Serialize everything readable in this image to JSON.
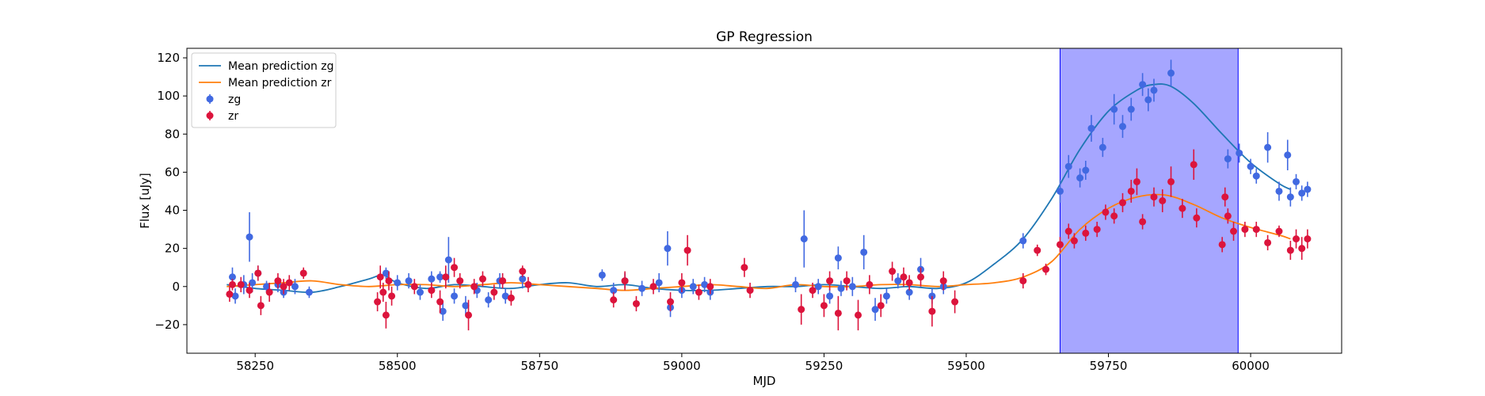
{
  "chart_data": {
    "type": "scatter",
    "title": "GP Regression",
    "xlabel": "MJD",
    "ylabel": "Flux [uJy]",
    "xlim": [
      58130,
      60160
    ],
    "ylim": [
      -35,
      125
    ],
    "xticks": [
      58250,
      58500,
      58750,
      59000,
      59250,
      59500,
      59750,
      60000
    ],
    "yticks": [
      -20,
      0,
      20,
      40,
      60,
      80,
      100,
      120
    ],
    "highlight_region": {
      "x_start": 59665,
      "x_end": 59978,
      "color": "#a6a6ff"
    },
    "legend": {
      "location": "upper left",
      "entries": [
        "Mean prediction zg",
        "Mean prediction zr",
        "zg",
        "zr"
      ]
    },
    "lines": [
      {
        "name": "Mean prediction zg",
        "color": "#1f77b4",
        "x": [
          58200,
          58250,
          58300,
          58350,
          58400,
          58450,
          58475,
          58500,
          58550,
          58600,
          58650,
          58700,
          58750,
          58800,
          58850,
          58900,
          58950,
          59000,
          59050,
          59100,
          59150,
          59200,
          59250,
          59300,
          59350,
          59400,
          59450,
          59500,
          59550,
          59600,
          59650,
          59700,
          59750,
          59800,
          59830,
          59860,
          59900,
          59950,
          60000,
          60050,
          60070
        ],
        "y": [
          1,
          -1,
          -2,
          -3,
          0,
          4,
          6,
          2,
          -1,
          1,
          0,
          -1,
          1,
          2,
          0,
          1,
          -1,
          -2,
          -2,
          -1,
          0,
          0,
          1,
          0,
          -1,
          0,
          -1,
          2,
          12,
          25,
          46,
          72,
          92,
          103,
          106,
          105,
          96,
          80,
          65,
          54,
          51
        ]
      },
      {
        "name": "Mean prediction zr",
        "color": "#ff7f0e",
        "x": [
          58200,
          58250,
          58300,
          58350,
          58400,
          58450,
          58500,
          58550,
          58600,
          58650,
          58700,
          58750,
          58800,
          58850,
          58900,
          58950,
          59000,
          59050,
          59100,
          59150,
          59200,
          59250,
          59300,
          59350,
          59400,
          59450,
          59500,
          59550,
          59600,
          59650,
          59700,
          59750,
          59800,
          59850,
          59900,
          59950,
          60000,
          60050,
          60070
        ],
        "y": [
          0,
          1,
          2,
          3,
          1,
          0,
          1,
          1,
          0,
          1,
          2,
          1,
          0,
          -1,
          -2,
          -1,
          0,
          1,
          0,
          -1,
          1,
          0,
          0,
          1,
          1,
          0,
          1,
          2,
          5,
          13,
          30,
          41,
          47,
          48,
          43,
          36,
          31,
          27,
          25
        ]
      }
    ],
    "series": [
      {
        "name": "zg",
        "color": "#4169e1",
        "points": [
          [
            58210,
            5,
            5
          ],
          [
            58215,
            -5,
            4
          ],
          [
            58230,
            1,
            5
          ],
          [
            58240,
            26,
            13
          ],
          [
            58245,
            2,
            5
          ],
          [
            58255,
            7,
            4
          ],
          [
            58270,
            0,
            3
          ],
          [
            58290,
            1,
            4
          ],
          [
            58300,
            -3,
            3
          ],
          [
            58320,
            0,
            4
          ],
          [
            58345,
            -3,
            3
          ],
          [
            58480,
            7,
            3
          ],
          [
            58500,
            2,
            4
          ],
          [
            58520,
            3,
            4
          ],
          [
            58540,
            -3,
            4
          ],
          [
            58560,
            4,
            4
          ],
          [
            58575,
            5,
            3
          ],
          [
            58580,
            -13,
            5
          ],
          [
            58590,
            14,
            12
          ],
          [
            58600,
            -5,
            4
          ],
          [
            58620,
            -10,
            5
          ],
          [
            58640,
            -2,
            4
          ],
          [
            58660,
            -7,
            4
          ],
          [
            58680,
            3,
            4
          ],
          [
            58690,
            -5,
            4
          ],
          [
            58720,
            4,
            5
          ],
          [
            58860,
            6,
            3
          ],
          [
            58880,
            -2,
            4
          ],
          [
            58900,
            3,
            4
          ],
          [
            58930,
            -1,
            4
          ],
          [
            58960,
            2,
            5
          ],
          [
            58975,
            20,
            9
          ],
          [
            58980,
            -11,
            5
          ],
          [
            59000,
            -2,
            4
          ],
          [
            59020,
            0,
            4
          ],
          [
            59040,
            1,
            4
          ],
          [
            59050,
            -3,
            4
          ],
          [
            59200,
            1,
            4
          ],
          [
            59215,
            25,
            15
          ],
          [
            59240,
            0,
            4
          ],
          [
            59260,
            -5,
            4
          ],
          [
            59275,
            15,
            6
          ],
          [
            59280,
            -1,
            4
          ],
          [
            59300,
            0,
            5
          ],
          [
            59320,
            18,
            9
          ],
          [
            59340,
            -12,
            6
          ],
          [
            59360,
            -5,
            4
          ],
          [
            59380,
            3,
            4
          ],
          [
            59400,
            -3,
            4
          ],
          [
            59420,
            9,
            6
          ],
          [
            59440,
            -5,
            4
          ],
          [
            59460,
            0,
            4
          ],
          [
            59600,
            24,
            4
          ],
          [
            59665,
            50,
            6
          ],
          [
            59680,
            63,
            6
          ],
          [
            59700,
            57,
            5
          ],
          [
            59710,
            61,
            5
          ],
          [
            59720,
            83,
            7
          ],
          [
            59740,
            73,
            5
          ],
          [
            59760,
            93,
            8
          ],
          [
            59775,
            84,
            6
          ],
          [
            59790,
            93,
            6
          ],
          [
            59810,
            106,
            6
          ],
          [
            59820,
            98,
            6
          ],
          [
            59830,
            103,
            6
          ],
          [
            59860,
            112,
            7
          ],
          [
            59960,
            67,
            5
          ],
          [
            59980,
            70,
            5
          ],
          [
            60000,
            63,
            4
          ],
          [
            60010,
            58,
            4
          ],
          [
            60030,
            73,
            8
          ],
          [
            60050,
            50,
            5
          ],
          [
            60065,
            69,
            8
          ],
          [
            60070,
            47,
            5
          ],
          [
            60080,
            55,
            4
          ],
          [
            60090,
            49,
            4
          ],
          [
            60100,
            51,
            4
          ]
        ]
      },
      {
        "name": "zr",
        "color": "#dc143c",
        "points": [
          [
            58205,
            -4,
            4
          ],
          [
            58210,
            1,
            3
          ],
          [
            58225,
            1,
            4
          ],
          [
            58240,
            -2,
            4
          ],
          [
            58255,
            7,
            4
          ],
          [
            58260,
            -10,
            5
          ],
          [
            58275,
            -3,
            5
          ],
          [
            58290,
            3,
            4
          ],
          [
            58300,
            0,
            4
          ],
          [
            58310,
            2,
            4
          ],
          [
            58335,
            7,
            3
          ],
          [
            58465,
            -8,
            5
          ],
          [
            58470,
            5,
            6
          ],
          [
            58475,
            -3,
            5
          ],
          [
            58480,
            -15,
            7
          ],
          [
            58485,
            3,
            5
          ],
          [
            58490,
            -5,
            5
          ],
          [
            58530,
            0,
            4
          ],
          [
            58560,
            -2,
            4
          ],
          [
            58575,
            -8,
            6
          ],
          [
            58585,
            5,
            6
          ],
          [
            58600,
            10,
            5
          ],
          [
            58610,
            3,
            4
          ],
          [
            58625,
            -15,
            8
          ],
          [
            58635,
            0,
            4
          ],
          [
            58650,
            4,
            4
          ],
          [
            58670,
            -3,
            4
          ],
          [
            58685,
            3,
            4
          ],
          [
            58700,
            -6,
            4
          ],
          [
            58720,
            8,
            3
          ],
          [
            58730,
            1,
            4
          ],
          [
            58880,
            -7,
            4
          ],
          [
            58900,
            3,
            5
          ],
          [
            58920,
            -9,
            4
          ],
          [
            58950,
            0,
            4
          ],
          [
            58980,
            -8,
            5
          ],
          [
            59000,
            2,
            5
          ],
          [
            59010,
            19,
            8
          ],
          [
            59030,
            -3,
            4
          ],
          [
            59050,
            0,
            4
          ],
          [
            59110,
            10,
            5
          ],
          [
            59120,
            -2,
            4
          ],
          [
            59210,
            -12,
            8
          ],
          [
            59230,
            -2,
            4
          ],
          [
            59250,
            -10,
            6
          ],
          [
            59260,
            3,
            5
          ],
          [
            59275,
            -14,
            9
          ],
          [
            59290,
            3,
            5
          ],
          [
            59310,
            -15,
            8
          ],
          [
            59330,
            1,
            5
          ],
          [
            59350,
            -10,
            6
          ],
          [
            59370,
            8,
            5
          ],
          [
            59390,
            5,
            5
          ],
          [
            59400,
            2,
            4
          ],
          [
            59420,
            5,
            5
          ],
          [
            59440,
            -13,
            8
          ],
          [
            59460,
            3,
            5
          ],
          [
            59480,
            -8,
            6
          ],
          [
            59600,
            3,
            4
          ],
          [
            59625,
            19,
            3
          ],
          [
            59640,
            9,
            3
          ],
          [
            59665,
            22,
            4
          ],
          [
            59680,
            29,
            4
          ],
          [
            59690,
            24,
            4
          ],
          [
            59710,
            28,
            4
          ],
          [
            59730,
            30,
            4
          ],
          [
            59745,
            39,
            4
          ],
          [
            59760,
            37,
            4
          ],
          [
            59775,
            44,
            5
          ],
          [
            59790,
            50,
            6
          ],
          [
            59800,
            55,
            7
          ],
          [
            59810,
            34,
            4
          ],
          [
            59830,
            47,
            5
          ],
          [
            59845,
            45,
            6
          ],
          [
            59860,
            55,
            8
          ],
          [
            59880,
            41,
            5
          ],
          [
            59900,
            64,
            8
          ],
          [
            59905,
            36,
            5
          ],
          [
            59950,
            22,
            4
          ],
          [
            59955,
            47,
            5
          ],
          [
            59960,
            37,
            4
          ],
          [
            59970,
            29,
            5
          ],
          [
            59990,
            30,
            4
          ],
          [
            60010,
            30,
            4
          ],
          [
            60030,
            23,
            4
          ],
          [
            60050,
            29,
            3
          ],
          [
            60070,
            19,
            5
          ],
          [
            60080,
            25,
            5
          ],
          [
            60090,
            20,
            6
          ],
          [
            60100,
            25,
            5
          ]
        ]
      }
    ]
  }
}
